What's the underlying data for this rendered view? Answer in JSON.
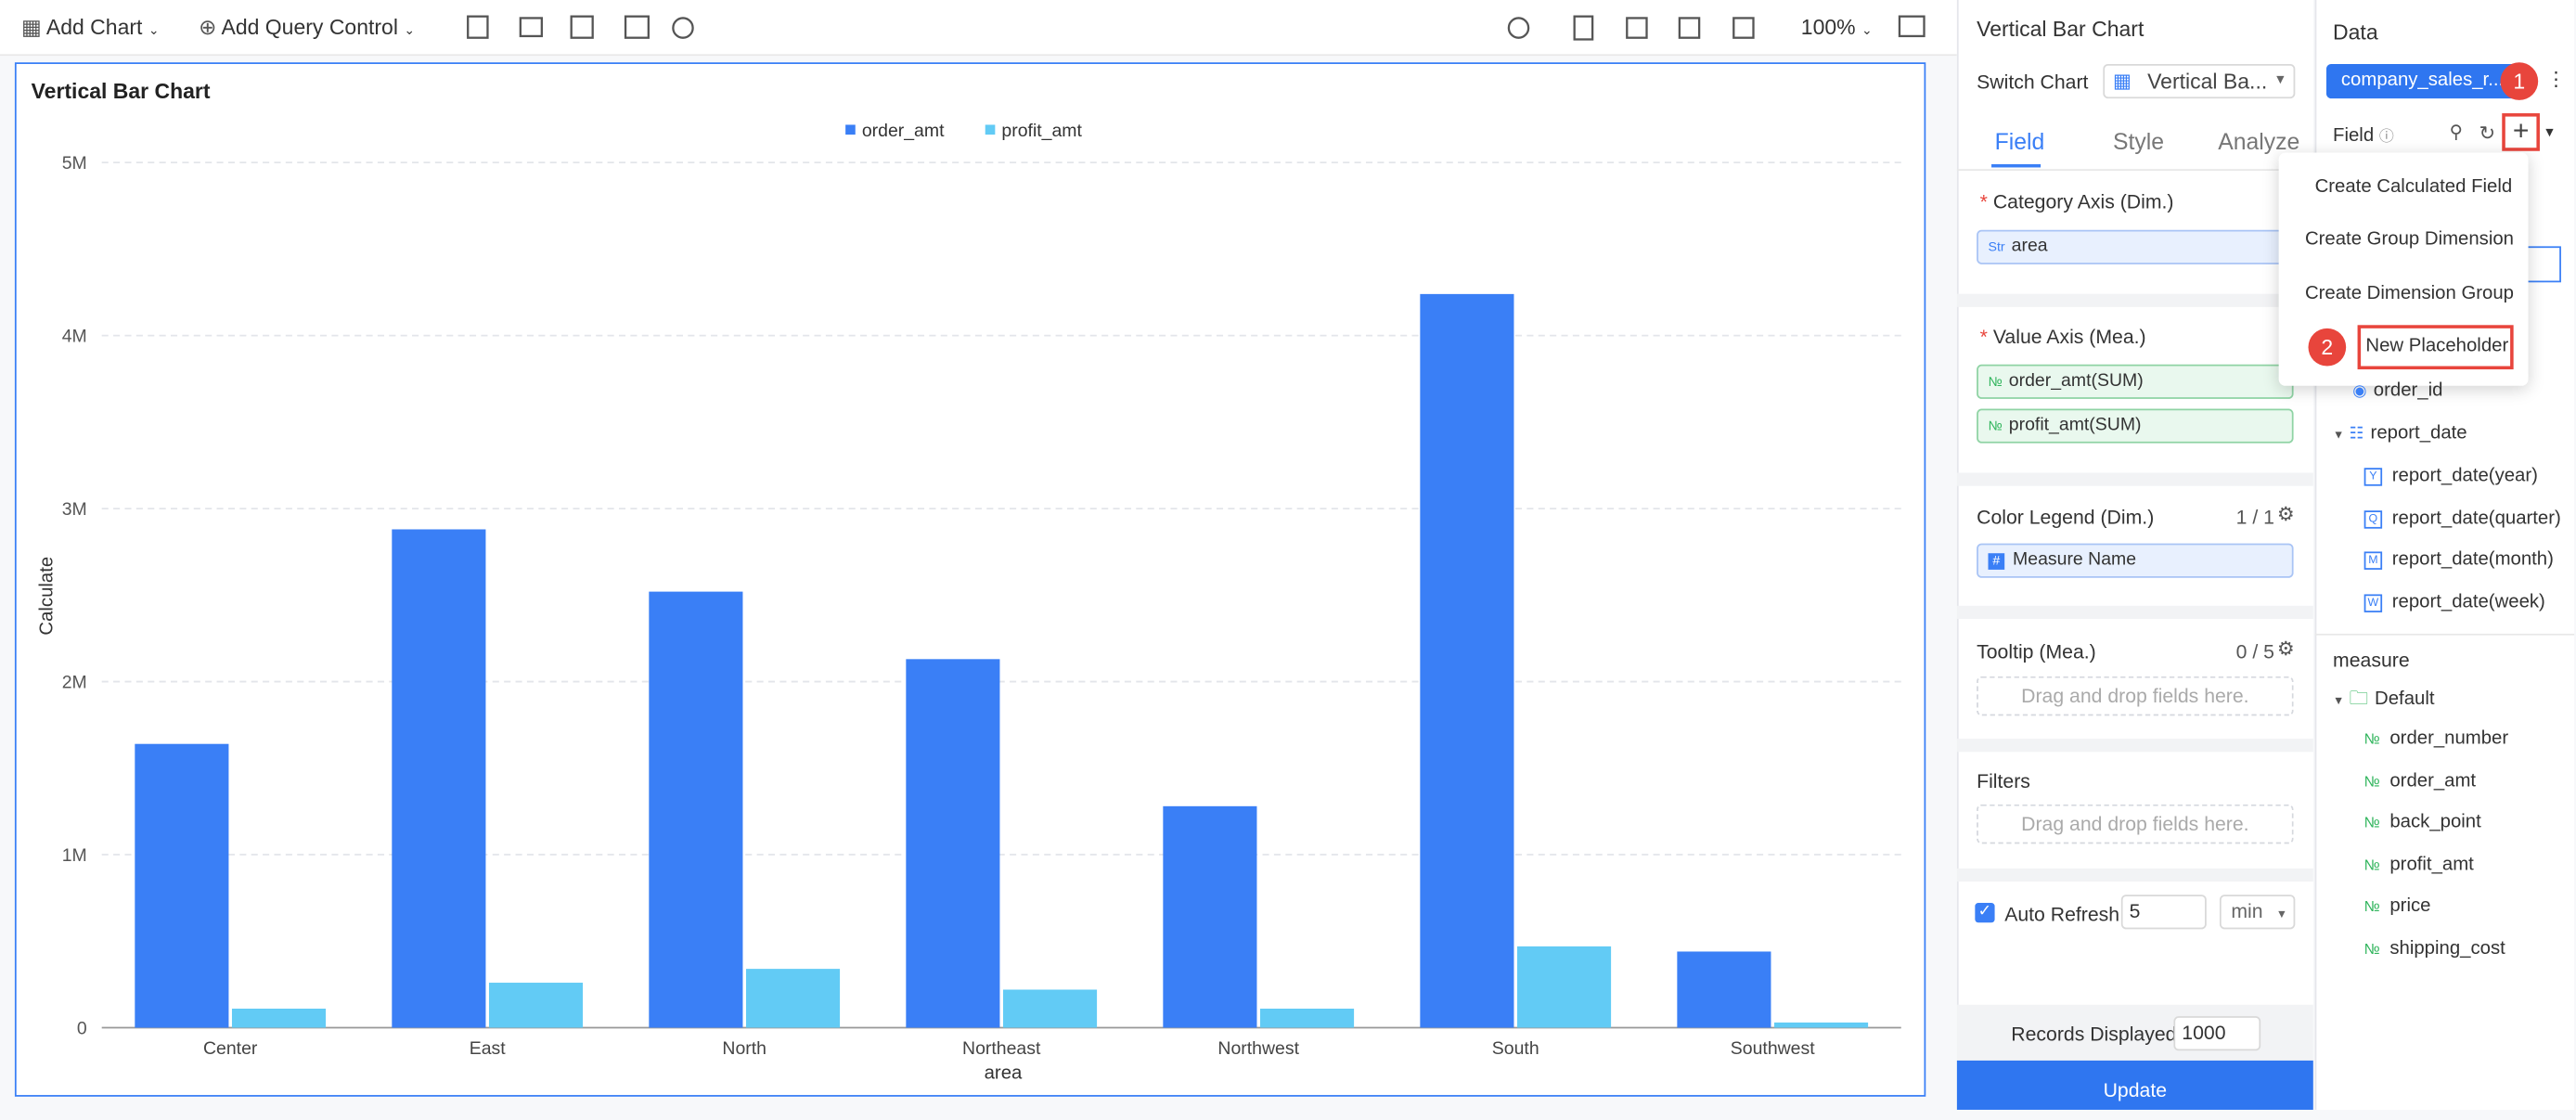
{
  "toolbar": {
    "add_chart": "Add Chart",
    "add_query_control": "Add Query Control",
    "zoom": "100%"
  },
  "chart_data": {
    "type": "bar",
    "title": "Vertical Bar Chart",
    "x_label": "area",
    "y_label": "Calculate",
    "categories": [
      "Center",
      "East",
      "North",
      "Northeast",
      "Northwest",
      "South",
      "Southwest"
    ],
    "series": [
      {
        "name": "order_amt",
        "color": "#3a7ff6",
        "values": [
          1640000,
          2880000,
          2520000,
          2130000,
          1280000,
          4240000,
          440000
        ]
      },
      {
        "name": "profit_amt",
        "color": "#62cbf5",
        "values": [
          110000,
          260000,
          340000,
          220000,
          110000,
          470000,
          30000
        ]
      }
    ],
    "ylim": [
      0,
      5000000
    ],
    "yticks": [
      0,
      {
        "value": 1000000,
        "label": "1M"
      },
      {
        "value": 2000000,
        "label": "2M"
      },
      {
        "value": 3000000,
        "label": "3M"
      },
      {
        "value": 4000000,
        "label": "4M"
      },
      {
        "value": 5000000,
        "label": "5M"
      }
    ],
    "grid": true,
    "legend": "top"
  },
  "config_panel": {
    "title": "Vertical Bar Chart",
    "switch_chart_label": "Switch Chart",
    "switch_chart_value": "Vertical Ba...",
    "tabs": [
      "Field",
      "Style",
      "Analyze"
    ],
    "category_axis": {
      "label": "Category Axis (Dim.)",
      "field_icon": "Str",
      "field": "area"
    },
    "value_axis": {
      "label": "Value Axis (Mea.)",
      "field_icon": "№",
      "fields": [
        "order_amt(SUM)",
        "profit_amt(SUM)"
      ]
    },
    "color_legend": {
      "label": "Color Legend (Dim.)",
      "count": "1 / 1",
      "field_icon": "#",
      "field": "Measure Name"
    },
    "tooltip": {
      "label": "Tooltip (Mea.)",
      "count": "0 / 5",
      "placeholder": "Drag and drop fields here."
    },
    "filters": {
      "label": "Filters",
      "placeholder": "Drag and drop fields here."
    },
    "auto_refresh": {
      "label": "Auto Refresh",
      "value": "5",
      "unit": "min"
    },
    "records_displayed": {
      "label": "Records Displayed",
      "value": "1000"
    },
    "update": "Update"
  },
  "data_panel": {
    "title": "Data",
    "dataset": "company_sales_r...",
    "field_label": "Field",
    "menu": [
      "Create Calculated Field",
      "Create Group Dimension",
      "Create Dimension Group",
      "New Placeholder"
    ],
    "steps": [
      "1",
      "2"
    ],
    "dimensions": {
      "order_id": "order_id",
      "report_date": "report_date",
      "sub": [
        {
          "icon": "Y",
          "name": "report_date(year)"
        },
        {
          "icon": "Q",
          "name": "report_date(quarter)"
        },
        {
          "icon": "M",
          "name": "report_date(month)"
        },
        {
          "icon": "W",
          "name": "report_date(week)"
        }
      ]
    },
    "measure_label": "measure",
    "folder": "Default",
    "measure_icon": "№",
    "measures": [
      "order_number",
      "order_amt",
      "back_point",
      "profit_amt",
      "price",
      "shipping_cost"
    ]
  }
}
